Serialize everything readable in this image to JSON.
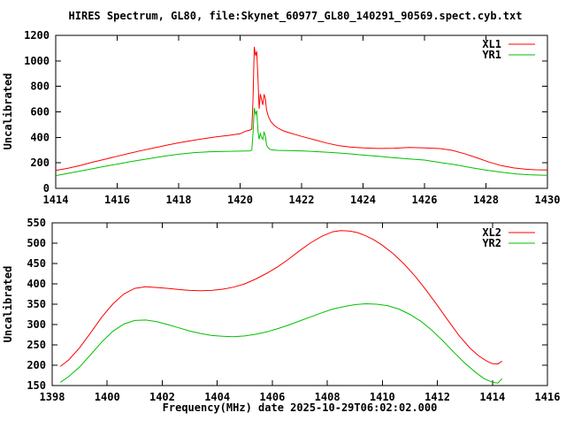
{
  "title": "HIRES Spectrum, GL80, file:Skynet_60977_GL80_140291_90569.spect.cyb.txt",
  "colors": {
    "background": "#ffffff",
    "axis": "#000000",
    "xl_series": "#ff0000",
    "yr_series": "#00c000"
  },
  "chart_data": [
    {
      "type": "line",
      "title": "",
      "xlabel": "",
      "ylabel": "Uncalibrated",
      "xlim": [
        1414,
        1430
      ],
      "ylim": [
        0,
        1200
      ],
      "xticks": [
        1414,
        1416,
        1418,
        1420,
        1422,
        1424,
        1426,
        1428,
        1430
      ],
      "yticks": [
        0,
        200,
        400,
        600,
        800,
        1000,
        1200
      ],
      "grid": false,
      "legend_position": "top-right",
      "series": [
        {
          "name": "XL1",
          "color": "#ff0000",
          "points": [
            [
              1414.0,
              140
            ],
            [
              1414.4,
              158
            ],
            [
              1414.8,
              180
            ],
            [
              1415.2,
              205
            ],
            [
              1415.6,
              228
            ],
            [
              1416.0,
              252
            ],
            [
              1416.4,
              275
            ],
            [
              1416.8,
              297
            ],
            [
              1417.2,
              318
            ],
            [
              1417.6,
              338
            ],
            [
              1418.0,
              357
            ],
            [
              1418.4,
              374
            ],
            [
              1418.8,
              389
            ],
            [
              1419.2,
              403
            ],
            [
              1419.6,
              415
            ],
            [
              1420.0,
              428
            ],
            [
              1420.1,
              440
            ],
            [
              1420.2,
              450
            ],
            [
              1420.3,
              455
            ],
            [
              1420.38,
              465
            ],
            [
              1420.42,
              700
            ],
            [
              1420.46,
              1110
            ],
            [
              1420.5,
              1040
            ],
            [
              1420.54,
              1075
            ],
            [
              1420.58,
              860
            ],
            [
              1420.62,
              625
            ],
            [
              1420.66,
              740
            ],
            [
              1420.7,
              695
            ],
            [
              1420.74,
              655
            ],
            [
              1420.78,
              738
            ],
            [
              1420.82,
              705
            ],
            [
              1420.86,
              615
            ],
            [
              1420.92,
              563
            ],
            [
              1421.0,
              523
            ],
            [
              1421.12,
              492
            ],
            [
              1421.26,
              468
            ],
            [
              1421.42,
              450
            ],
            [
              1421.6,
              436
            ],
            [
              1421.8,
              422
            ],
            [
              1422.0,
              408
            ],
            [
              1422.4,
              382
            ],
            [
              1422.8,
              356
            ],
            [
              1423.2,
              336
            ],
            [
              1423.6,
              323
            ],
            [
              1424.0,
              317
            ],
            [
              1424.5,
              313
            ],
            [
              1425.0,
              315
            ],
            [
              1425.5,
              321
            ],
            [
              1426.0,
              318
            ],
            [
              1426.5,
              312
            ],
            [
              1426.9,
              298
            ],
            [
              1427.3,
              272
            ],
            [
              1427.7,
              240
            ],
            [
              1428.1,
              206
            ],
            [
              1428.5,
              178
            ],
            [
              1428.9,
              160
            ],
            [
              1429.3,
              150
            ],
            [
              1429.6,
              146
            ],
            [
              1430.0,
              144
            ]
          ]
        },
        {
          "name": "YR1",
          "color": "#00c000",
          "points": [
            [
              1414.0,
              100
            ],
            [
              1414.5,
              122
            ],
            [
              1415.0,
              145
            ],
            [
              1415.5,
              168
            ],
            [
              1416.0,
              190
            ],
            [
              1416.5,
              212
            ],
            [
              1417.0,
              232
            ],
            [
              1417.5,
              252
            ],
            [
              1418.0,
              268
            ],
            [
              1418.5,
              280
            ],
            [
              1419.0,
              287
            ],
            [
              1419.5,
              290
            ],
            [
              1420.0,
              292
            ],
            [
              1420.3,
              294
            ],
            [
              1420.38,
              300
            ],
            [
              1420.42,
              430
            ],
            [
              1420.46,
              630
            ],
            [
              1420.5,
              580
            ],
            [
              1420.54,
              610
            ],
            [
              1420.58,
              450
            ],
            [
              1420.62,
              385
            ],
            [
              1420.66,
              430
            ],
            [
              1420.7,
              400
            ],
            [
              1420.74,
              385
            ],
            [
              1420.78,
              440
            ],
            [
              1420.82,
              415
            ],
            [
              1420.86,
              340
            ],
            [
              1420.92,
              315
            ],
            [
              1421.0,
              303
            ],
            [
              1421.2,
              298
            ],
            [
              1421.5,
              296
            ],
            [
              1422.0,
              294
            ],
            [
              1422.5,
              288
            ],
            [
              1423.0,
              281
            ],
            [
              1423.5,
              272
            ],
            [
              1424.0,
              261
            ],
            [
              1424.5,
              251
            ],
            [
              1425.0,
              240
            ],
            [
              1425.5,
              231
            ],
            [
              1426.0,
              222
            ],
            [
              1426.5,
              203
            ],
            [
              1427.0,
              186
            ],
            [
              1427.5,
              163
            ],
            [
              1428.0,
              143
            ],
            [
              1428.5,
              126
            ],
            [
              1429.0,
              113
            ],
            [
              1429.4,
              107
            ],
            [
              1429.7,
              104
            ],
            [
              1430.0,
              103
            ]
          ]
        }
      ]
    },
    {
      "type": "line",
      "title": "",
      "xlabel": "Frequency(MHz) date 2025-10-29T06:02:02.000",
      "ylabel": "Uncalibrated",
      "xlim": [
        1398,
        1416
      ],
      "ylim": [
        150,
        550
      ],
      "xticks": [
        1398,
        1400,
        1402,
        1404,
        1406,
        1408,
        1410,
        1412,
        1414,
        1416
      ],
      "yticks": [
        150,
        200,
        250,
        300,
        350,
        400,
        450,
        500,
        550
      ],
      "grid": false,
      "legend_position": "top-right",
      "series": [
        {
          "name": "XL2",
          "color": "#ff0000",
          "points": [
            [
              1398.3,
              197
            ],
            [
              1398.6,
              213
            ],
            [
              1399.0,
              243
            ],
            [
              1399.4,
              280
            ],
            [
              1399.8,
              318
            ],
            [
              1400.2,
              350
            ],
            [
              1400.6,
              375
            ],
            [
              1401.0,
              389
            ],
            [
              1401.4,
              393
            ],
            [
              1401.8,
              391
            ],
            [
              1402.2,
              389
            ],
            [
              1402.6,
              386
            ],
            [
              1403.0,
              384
            ],
            [
              1403.4,
              383
            ],
            [
              1403.8,
              384
            ],
            [
              1404.2,
              387
            ],
            [
              1404.6,
              392
            ],
            [
              1405.0,
              400
            ],
            [
              1405.4,
              412
            ],
            [
              1405.8,
              426
            ],
            [
              1406.2,
              442
            ],
            [
              1406.6,
              461
            ],
            [
              1407.0,
              482
            ],
            [
              1407.4,
              501
            ],
            [
              1407.8,
              517
            ],
            [
              1408.2,
              528
            ],
            [
              1408.5,
              531
            ],
            [
              1408.8,
              530
            ],
            [
              1409.1,
              526
            ],
            [
              1409.4,
              518
            ],
            [
              1409.7,
              508
            ],
            [
              1410.0,
              495
            ],
            [
              1410.4,
              474
            ],
            [
              1410.8,
              448
            ],
            [
              1411.2,
              418
            ],
            [
              1411.6,
              384
            ],
            [
              1412.0,
              347
            ],
            [
              1412.4,
              309
            ],
            [
              1412.8,
              272
            ],
            [
              1413.2,
              241
            ],
            [
              1413.5,
              223
            ],
            [
              1413.8,
              210
            ],
            [
              1414.0,
              204
            ],
            [
              1414.2,
              203
            ],
            [
              1414.35,
              210
            ]
          ]
        },
        {
          "name": "YR2",
          "color": "#00c000",
          "points": [
            [
              1398.3,
              158
            ],
            [
              1398.6,
              172
            ],
            [
              1399.0,
              196
            ],
            [
              1399.4,
              226
            ],
            [
              1399.8,
              257
            ],
            [
              1400.2,
              283
            ],
            [
              1400.6,
              301
            ],
            [
              1401.0,
              310
            ],
            [
              1401.4,
              311
            ],
            [
              1401.8,
              307
            ],
            [
              1402.2,
              300
            ],
            [
              1402.6,
              292
            ],
            [
              1403.0,
              284
            ],
            [
              1403.4,
              278
            ],
            [
              1403.8,
              273
            ],
            [
              1404.2,
              271
            ],
            [
              1404.6,
              270
            ],
            [
              1405.0,
              272
            ],
            [
              1405.4,
              276
            ],
            [
              1405.8,
              282
            ],
            [
              1406.2,
              290
            ],
            [
              1406.6,
              299
            ],
            [
              1407.0,
              309
            ],
            [
              1407.4,
              319
            ],
            [
              1407.8,
              329
            ],
            [
              1408.2,
              338
            ],
            [
              1408.6,
              344
            ],
            [
              1409.0,
              349
            ],
            [
              1409.4,
              351
            ],
            [
              1409.8,
              350
            ],
            [
              1410.2,
              346
            ],
            [
              1410.6,
              338
            ],
            [
              1411.0,
              325
            ],
            [
              1411.4,
              308
            ],
            [
              1411.8,
              286
            ],
            [
              1412.2,
              260
            ],
            [
              1412.6,
              232
            ],
            [
              1413.0,
              205
            ],
            [
              1413.4,
              182
            ],
            [
              1413.7,
              167
            ],
            [
              1414.0,
              158
            ],
            [
              1414.2,
              156
            ],
            [
              1414.35,
              167
            ]
          ]
        }
      ]
    }
  ]
}
